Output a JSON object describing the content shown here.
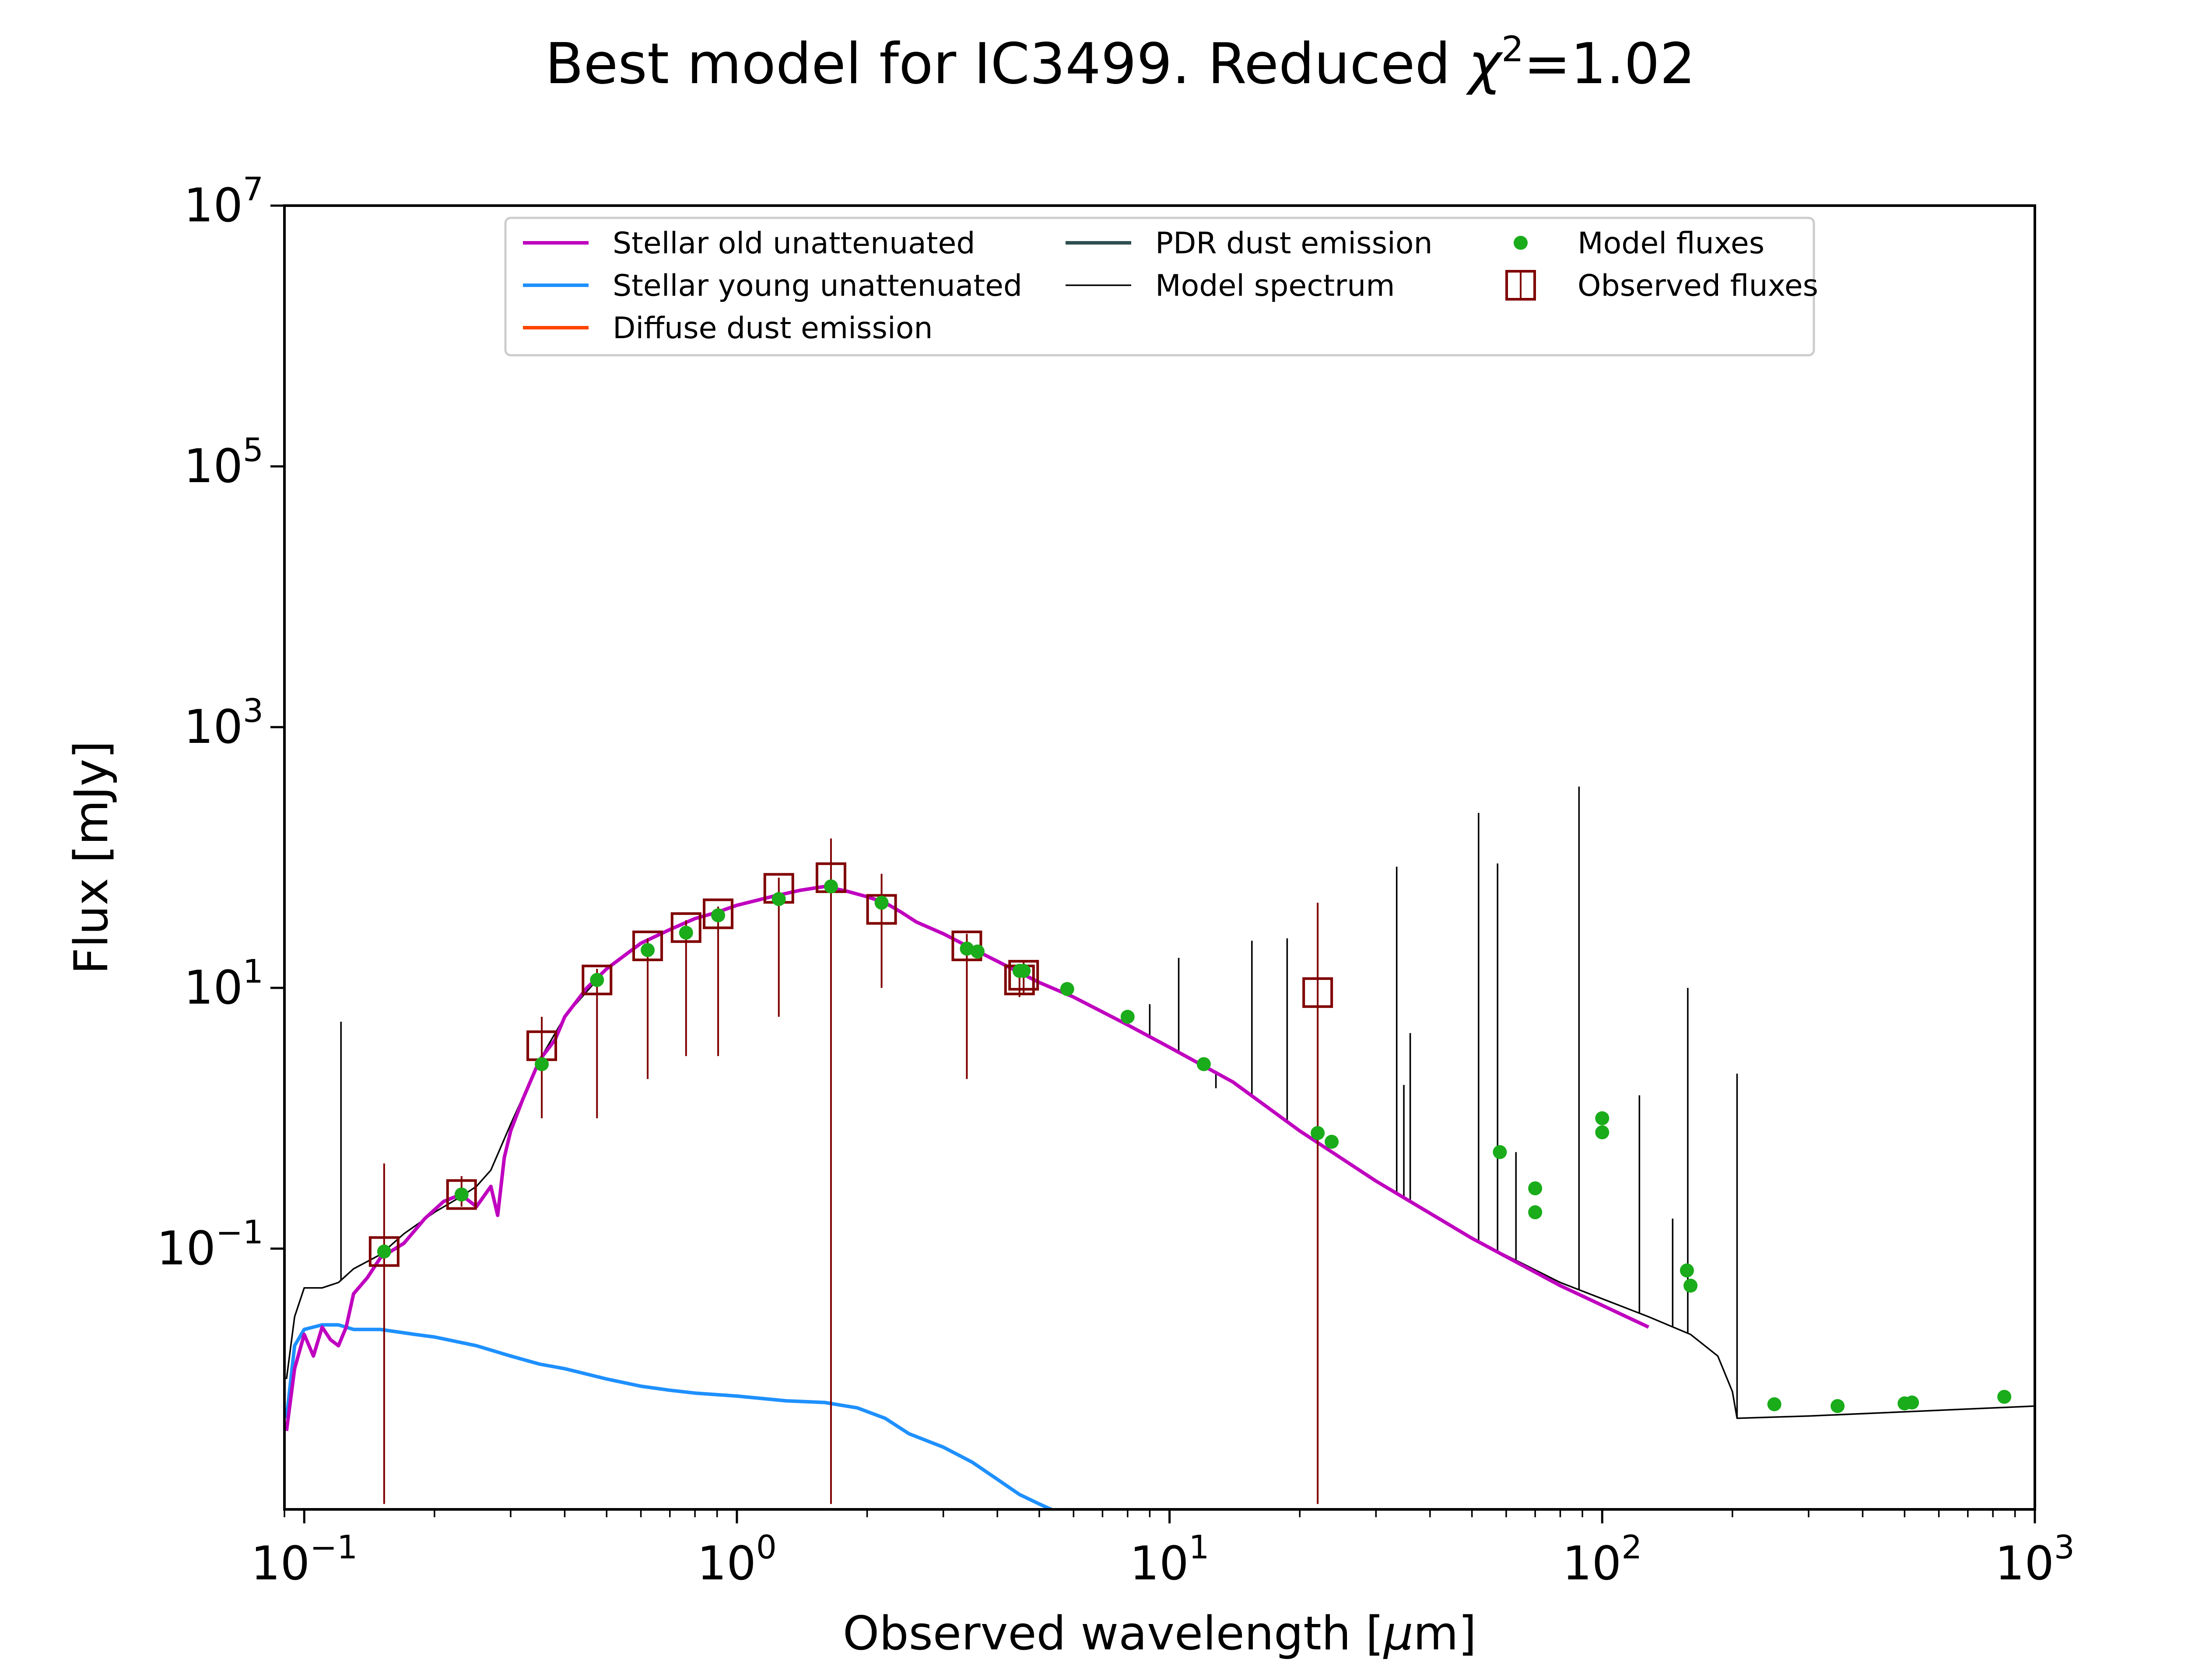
{
  "chart_data": {
    "type": "line",
    "title": "Best model for IC3499. Reduced χ²=1.02",
    "title_parts": {
      "prefix": "Best model for IC3499. Reduced ",
      "symbol": "χ",
      "superscript": "2",
      "suffix": "=1.02"
    },
    "xlabel": "Observed wavelength [μm]",
    "xlabel_parts": {
      "prefix": "Observed wavelength [",
      "mu": "μ",
      "suffix": "m]"
    },
    "ylabel": "Flux [mJy]",
    "xscale": "log",
    "yscale": "log",
    "xlim": [
      0.09,
      1000
    ],
    "ylim": [
      0.001,
      10000000
    ],
    "x_ticks": [
      {
        "value": 0.1,
        "base": "10",
        "exp": "−1"
      },
      {
        "value": 1,
        "base": "10",
        "exp": "0"
      },
      {
        "value": 10,
        "base": "10",
        "exp": "1"
      },
      {
        "value": 100,
        "base": "10",
        "exp": "2"
      },
      {
        "value": 1000,
        "base": "10",
        "exp": "3"
      }
    ],
    "y_ticks": [
      {
        "value": 0.1,
        "base": "10",
        "exp": "−1"
      },
      {
        "value": 10,
        "base": "10",
        "exp": "1"
      },
      {
        "value": 1000,
        "base": "10",
        "exp": "3"
      },
      {
        "value": 100000,
        "base": "10",
        "exp": "5"
      },
      {
        "value": 10000000,
        "base": "10",
        "exp": "7"
      }
    ],
    "grid": false,
    "legend_position": "top-center",
    "legend": [
      {
        "label": "Stellar old unattenuated",
        "marker": "line",
        "color": "#bf00bf"
      },
      {
        "label": "Stellar young unattenuated",
        "marker": "line",
        "color": "#1e90ff"
      },
      {
        "label": "Diffuse dust emission",
        "marker": "line",
        "color": "#ff4500"
      },
      {
        "label": "PDR dust emission",
        "marker": "line",
        "color": "#2f4f4f"
      },
      {
        "label": "Model spectrum",
        "marker": "thinline",
        "color": "#000000"
      },
      {
        "label": "Model fluxes",
        "marker": "dot",
        "color": "#1aac1a"
      },
      {
        "label": "Observed fluxes",
        "marker": "square",
        "color": "#800000"
      }
    ],
    "series": [
      {
        "name": "Stellar old unattenuated",
        "kind": "line",
        "color": "#bf00bf",
        "x": [
          0.091,
          0.095,
          0.1,
          0.105,
          0.11,
          0.115,
          0.12,
          0.125,
          0.13,
          0.14,
          0.15,
          0.17,
          0.19,
          0.21,
          0.23,
          0.25,
          0.27,
          0.28,
          0.29,
          0.3,
          0.32,
          0.35,
          0.38,
          0.4,
          0.45,
          0.5,
          0.6,
          0.7,
          0.8,
          0.9,
          1.0,
          1.2,
          1.4,
          1.6,
          1.8,
          2.0,
          2.2,
          2.4,
          2.6,
          3.0,
          3.5,
          4.0,
          5.0,
          6.0,
          8.0,
          10,
          14,
          20,
          30,
          50,
          80,
          128
        ],
        "y": [
          0.004,
          0.012,
          0.022,
          0.015,
          0.025,
          0.02,
          0.018,
          0.025,
          0.045,
          0.06,
          0.085,
          0.11,
          0.17,
          0.23,
          0.26,
          0.21,
          0.3,
          0.18,
          0.5,
          0.8,
          1.4,
          2.8,
          4.0,
          6.0,
          10,
          14,
          22,
          28,
          34,
          38,
          43,
          50,
          56,
          60,
          55,
          50,
          45,
          38,
          32,
          26,
          20,
          16,
          11,
          8.5,
          5.2,
          3.5,
          1.9,
          0.8,
          0.33,
          0.12,
          0.052,
          0.025
        ]
      },
      {
        "name": "Stellar young unattenuated",
        "kind": "line",
        "color": "#1e90ff",
        "x": [
          0.091,
          0.095,
          0.1,
          0.11,
          0.12,
          0.13,
          0.15,
          0.18,
          0.2,
          0.25,
          0.3,
          0.35,
          0.4,
          0.5,
          0.6,
          0.7,
          0.8,
          1.0,
          1.3,
          1.6,
          1.9,
          2.2,
          2.5,
          3.0,
          3.5,
          4.0,
          4.5,
          5.0,
          5.4
        ],
        "y": [
          0.005,
          0.018,
          0.024,
          0.026,
          0.026,
          0.024,
          0.024,
          0.022,
          0.021,
          0.018,
          0.015,
          0.013,
          0.012,
          0.01,
          0.0088,
          0.0082,
          0.0078,
          0.0074,
          0.0068,
          0.0066,
          0.006,
          0.005,
          0.0038,
          0.003,
          0.0023,
          0.0017,
          0.0013,
          0.0011,
          0.00098
        ]
      },
      {
        "name": "Model spectrum",
        "kind": "thinline",
        "color": "#000000",
        "x": [
          0.091,
          0.095,
          0.1,
          0.11,
          0.12,
          0.13,
          0.15,
          0.17,
          0.2,
          0.23,
          0.25,
          0.27,
          0.3,
          0.35,
          0.4,
          0.5,
          0.6,
          0.8,
          1.0,
          1.2,
          1.4,
          1.6,
          1.8,
          2.0,
          2.2,
          2.6,
          3.0,
          3.5,
          4.0,
          5.0,
          6.0,
          8.0,
          10,
          14,
          20,
          30,
          50,
          80,
          128,
          160,
          185,
          200,
          205,
          300,
          500,
          1000
        ],
        "y": [
          0.01,
          0.03,
          0.05,
          0.05,
          0.055,
          0.07,
          0.09,
          0.13,
          0.19,
          0.25,
          0.3,
          0.4,
          0.9,
          2.8,
          6.0,
          14,
          22,
          34,
          43,
          50,
          56,
          60,
          55,
          50,
          45,
          32,
          26,
          20,
          16,
          11,
          8.5,
          5.2,
          3.5,
          1.9,
          0.8,
          0.33,
          0.12,
          0.055,
          0.03,
          0.022,
          0.015,
          0.008,
          0.005,
          0.0052,
          0.0056,
          0.0062
        ]
      },
      {
        "name": "Model spectrum emission lines",
        "kind": "spikes",
        "color": "#000000",
        "x": [
          0.1216,
          9.0,
          10.5,
          12.8,
          15.5,
          18.7,
          33.5,
          34.8,
          36.0,
          51.8,
          57.3,
          63.2,
          88.4,
          121.9,
          145.5,
          157.7,
          205
        ],
        "y_top": [
          5.5,
          7.5,
          17,
          1.7,
          23,
          24,
          85,
          1.8,
          4.5,
          220,
          90,
          0.55,
          350,
          1.5,
          0.17,
          10,
          2.2
        ]
      },
      {
        "name": "Model fluxes",
        "kind": "scatter",
        "color": "#1aac1a",
        "x": [
          0.153,
          0.231,
          0.354,
          0.475,
          0.622,
          0.763,
          0.905,
          1.25,
          1.65,
          2.16,
          3.4,
          3.6,
          4.5,
          4.6,
          5.8,
          8.0,
          12,
          22,
          23.7,
          58,
          70,
          70,
          100,
          100,
          157,
          160,
          250,
          350,
          500,
          520,
          850
        ],
        "y": [
          0.095,
          0.26,
          2.6,
          11.5,
          19.5,
          26.5,
          36,
          48,
          60,
          45,
          20,
          19,
          13.5,
          13.5,
          9.8,
          6.0,
          2.6,
          0.77,
          0.66,
          0.55,
          0.29,
          0.19,
          0.78,
          1.0,
          0.068,
          0.052,
          0.0064,
          0.0062,
          0.0065,
          0.0066,
          0.0073
        ]
      },
      {
        "name": "Observed fluxes",
        "kind": "errorbar",
        "color": "#800000",
        "x": [
          0.153,
          0.231,
          0.354,
          0.475,
          0.622,
          0.763,
          0.905,
          1.25,
          1.65,
          2.16,
          3.4,
          4.5,
          4.6,
          22
        ],
        "y": [
          0.095,
          0.26,
          3.6,
          11.5,
          21,
          29,
          37,
          58,
          70,
          40,
          21,
          11.5,
          12.5,
          9.2
        ],
        "yerr_low": [
          0.0011,
          0.21,
          1.0,
          1.0,
          2.0,
          3.0,
          3.0,
          6.0,
          0.0011,
          10,
          2.0,
          8.5,
          9.0,
          0.0011
        ],
        "yerr_high": [
          0.45,
          0.36,
          6.0,
          14,
          24,
          33,
          42,
          70,
          140,
          75,
          26,
          15,
          16,
          45
        ]
      }
    ]
  }
}
